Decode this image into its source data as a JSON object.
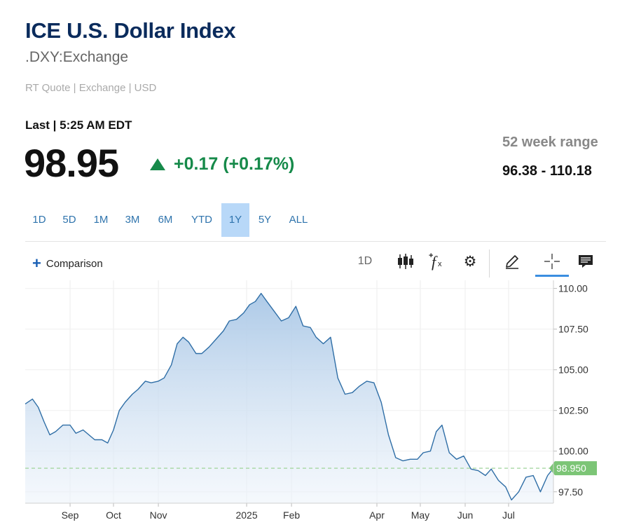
{
  "header": {
    "title": "ICE U.S. Dollar Index",
    "symbol": ".DXY:Exchange",
    "quote_meta": "RT Quote | Exchange | USD",
    "last_line": "Last | 5:25 AM EDT",
    "price": "98.95",
    "change": "+0.17 (+0.17%)",
    "range_label": "52 week range",
    "range_value": "96.38 - 110.18"
  },
  "tabs": [
    {
      "label": "1D",
      "active": false
    },
    {
      "label": "5D",
      "active": false
    },
    {
      "label": "1M",
      "active": false
    },
    {
      "label": "3M",
      "active": false
    },
    {
      "label": "6M",
      "active": false
    },
    {
      "label": "YTD",
      "active": false
    },
    {
      "label": "1Y",
      "active": true
    },
    {
      "label": "5Y",
      "active": false
    },
    {
      "label": "ALL",
      "active": false
    }
  ],
  "toolbar": {
    "comparison_label": "Comparison",
    "interval_label": "1D",
    "icons": [
      "candlestick-icon",
      "function-icon",
      "gear-icon",
      "pencil-icon",
      "crosshair-icon",
      "comment-icon"
    ]
  },
  "colors": {
    "title": "#0a2b5c",
    "positive": "#168a4a",
    "accent": "#2f74ad",
    "active_tab_bg": "#b8d8f8",
    "line": "#2f6ea6",
    "fill_top": "#a9c7e6",
    "price_tag_bg": "#7cc576"
  },
  "chart_data": {
    "type": "area",
    "title": "",
    "xlabel": "",
    "ylabel": "",
    "ylim": [
      96.8,
      110.5
    ],
    "x_tick_labels": [
      "Sep",
      "Oct",
      "Nov",
      "2025",
      "Feb",
      "Apr",
      "May",
      "Jun",
      "Jul"
    ],
    "y_tick_labels": [
      "110.00",
      "107.50",
      "105.00",
      "102.50",
      "100.00",
      "97.50"
    ],
    "y_ticks": [
      110,
      107.5,
      105,
      102.5,
      100,
      97.5
    ],
    "last_value_label": "98.950",
    "last_value": 98.95,
    "grid": true,
    "x": [
      "2024-08-01",
      "2024-08-06",
      "2024-08-10",
      "2024-08-14",
      "2024-08-18",
      "2024-08-22",
      "2024-08-27",
      "2024-09-01",
      "2024-09-05",
      "2024-09-10",
      "2024-09-14",
      "2024-09-18",
      "2024-09-23",
      "2024-09-27",
      "2024-10-01",
      "2024-10-05",
      "2024-10-09",
      "2024-10-14",
      "2024-10-18",
      "2024-10-23",
      "2024-10-27",
      "2024-11-01",
      "2024-11-05",
      "2024-11-10",
      "2024-11-14",
      "2024-11-18",
      "2024-11-22",
      "2024-11-27",
      "2024-12-01",
      "2024-12-06",
      "2024-12-11",
      "2024-12-16",
      "2024-12-20",
      "2024-12-25",
      "2024-12-30",
      "2025-01-03",
      "2025-01-07",
      "2025-01-11",
      "2025-01-15",
      "2025-01-20",
      "2025-01-25",
      "2025-01-30",
      "2025-02-04",
      "2025-02-09",
      "2025-02-14",
      "2025-02-18",
      "2025-02-23",
      "2025-02-28",
      "2025-03-05",
      "2025-03-10",
      "2025-03-15",
      "2025-03-20",
      "2025-03-25",
      "2025-03-30",
      "2025-04-04",
      "2025-04-09",
      "2025-04-14",
      "2025-04-19",
      "2025-04-24",
      "2025-04-29",
      "2025-05-03",
      "2025-05-08",
      "2025-05-12",
      "2025-05-16",
      "2025-05-21",
      "2025-05-26",
      "2025-05-31",
      "2025-06-05",
      "2025-06-10",
      "2025-06-15",
      "2025-06-19",
      "2025-06-24",
      "2025-06-29",
      "2025-07-03",
      "2025-07-08",
      "2025-07-13",
      "2025-07-18",
      "2025-07-23",
      "2025-07-28",
      "2025-08-01"
    ],
    "series": [
      {
        "values": [
          102.9,
          103.2,
          102.7,
          101.8,
          101.0,
          101.2,
          101.6,
          101.6,
          101.1,
          101.3,
          101.0,
          100.7,
          100.7,
          100.5,
          101.3,
          102.5,
          103.0,
          103.5,
          103.8,
          104.3,
          104.2,
          104.3,
          104.5,
          105.3,
          106.6,
          107.0,
          106.7,
          106.0,
          106.0,
          106.4,
          106.9,
          107.4,
          108.0,
          108.1,
          108.5,
          109.0,
          109.2,
          109.7,
          109.2,
          108.6,
          108.0,
          108.2,
          108.9,
          107.7,
          107.6,
          107.0,
          106.6,
          107.0,
          104.5,
          103.5,
          103.6,
          104.0,
          104.3,
          104.2,
          103.0,
          101.0,
          99.6,
          99.4,
          99.5,
          99.5,
          99.9,
          100.0,
          101.2,
          101.6,
          99.9,
          99.5,
          99.7,
          98.9,
          98.8,
          98.5,
          98.9,
          98.2,
          97.8,
          97.0,
          97.5,
          98.4,
          98.5,
          97.5,
          98.5,
          98.95
        ]
      }
    ]
  }
}
